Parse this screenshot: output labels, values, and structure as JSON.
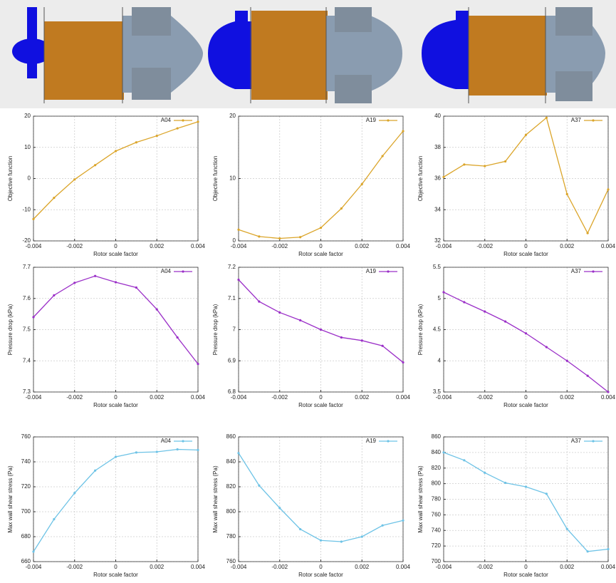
{
  "chart_data": [
    {
      "type": "line",
      "x": [
        -0.004,
        -0.003,
        -0.002,
        -0.001,
        0,
        0.001,
        0.002,
        0.003,
        0.004
      ],
      "series": [
        {
          "name": "A04",
          "color": "#dba52a",
          "values": [
            -13,
            -6.2,
            -0.3,
            4.3,
            8.8,
            11.6,
            13.7,
            16.1,
            18.2
          ]
        }
      ],
      "xlabel": "Rotor scale factor",
      "ylabel": "Objective function",
      "xlim": [
        -0.004,
        0.004
      ],
      "ylim": [
        -20,
        20
      ],
      "xticks": [
        -0.004,
        -0.002,
        0,
        0.002,
        0.004
      ],
      "yticks": [
        -20,
        -10,
        0,
        10,
        20
      ],
      "grid": true
    },
    {
      "type": "line",
      "x": [
        -0.004,
        -0.003,
        -0.002,
        -0.001,
        0,
        0.001,
        0.002,
        0.003,
        0.004
      ],
      "series": [
        {
          "name": "A19",
          "color": "#dba52a",
          "values": [
            1.8,
            0.7,
            0.4,
            0.6,
            2.1,
            5.2,
            9.1,
            13.6,
            17.6
          ]
        }
      ],
      "xlabel": "Rotor scale factor",
      "ylabel": "Objective function",
      "xlim": [
        -0.004,
        0.004
      ],
      "ylim": [
        0,
        20
      ],
      "xticks": [
        -0.004,
        -0.002,
        0,
        0.002,
        0.004
      ],
      "yticks": [
        0,
        10,
        20
      ],
      "grid": true
    },
    {
      "type": "line",
      "x": [
        -0.004,
        -0.003,
        -0.002,
        -0.001,
        0,
        0.001,
        0.002,
        0.003,
        0.004
      ],
      "series": [
        {
          "name": "A37",
          "color": "#dba52a",
          "values": [
            36.1,
            36.9,
            36.8,
            37.1,
            38.8,
            39.9,
            35.0,
            32.5,
            35.3
          ]
        }
      ],
      "xlabel": "Rotor scale factor",
      "ylabel": "Objective function",
      "xlim": [
        -0.004,
        0.004
      ],
      "ylim": [
        32,
        40
      ],
      "xticks": [
        -0.004,
        -0.002,
        0,
        0.002,
        0.004
      ],
      "yticks": [
        32,
        34,
        36,
        38,
        40
      ],
      "grid": true
    },
    {
      "type": "line",
      "x": [
        -0.004,
        -0.003,
        -0.002,
        -0.001,
        0,
        0.001,
        0.002,
        0.003,
        0.004
      ],
      "series": [
        {
          "name": "A04",
          "color": "#9b30c8",
          "values": [
            7.54,
            7.61,
            7.65,
            7.672,
            7.652,
            7.635,
            7.565,
            7.475,
            7.39
          ]
        }
      ],
      "xlabel": "Rotor scale factor",
      "ylabel": "Pressure drop (kPa)",
      "xlim": [
        -0.004,
        0.004
      ],
      "ylim": [
        7.3,
        7.7
      ],
      "xticks": [
        -0.004,
        -0.002,
        0,
        0.002,
        0.004
      ],
      "yticks": [
        7.3,
        7.4,
        7.5,
        7.6,
        7.7
      ],
      "grid": true
    },
    {
      "type": "line",
      "x": [
        -0.004,
        -0.003,
        -0.002,
        -0.001,
        0,
        0.001,
        0.002,
        0.003,
        0.004
      ],
      "series": [
        {
          "name": "A19",
          "color": "#9b30c8",
          "values": [
            7.16,
            7.09,
            7.055,
            7.03,
            7.0,
            6.975,
            6.965,
            6.948,
            6.895
          ]
        }
      ],
      "xlabel": "Rotor scale factor",
      "ylabel": "Pressure drop (kPa)",
      "xlim": [
        -0.004,
        0.004
      ],
      "ylim": [
        6.8,
        7.2
      ],
      "xticks": [
        -0.004,
        -0.002,
        0,
        0.002,
        0.004
      ],
      "yticks": [
        6.8,
        6.9,
        7,
        7.1,
        7.2
      ],
      "grid": true
    },
    {
      "type": "line",
      "x": [
        -0.004,
        -0.003,
        -0.002,
        -0.001,
        0,
        0.001,
        0.002,
        0.003,
        0.004
      ],
      "series": [
        {
          "name": "A37",
          "color": "#9b30c8",
          "values": [
            5.1,
            4.94,
            4.79,
            4.63,
            4.44,
            4.22,
            4.0,
            3.76,
            3.5
          ]
        }
      ],
      "xlabel": "Rotor scale factor",
      "ylabel": "Pressure drop (kPa)",
      "xlim": [
        -0.004,
        0.004
      ],
      "ylim": [
        3.5,
        5.5
      ],
      "xticks": [
        -0.004,
        -0.002,
        0,
        0.002,
        0.004
      ],
      "yticks": [
        3.5,
        4,
        4.5,
        5,
        5.5
      ],
      "grid": true
    },
    {
      "type": "line",
      "x": [
        -0.004,
        -0.003,
        -0.002,
        -0.001,
        0,
        0.001,
        0.002,
        0.003,
        0.004
      ],
      "series": [
        {
          "name": "A04",
          "color": "#6ec3e6",
          "values": [
            668,
            694,
            715,
            733,
            744,
            747.5,
            748,
            750,
            749.5
          ]
        }
      ],
      "xlabel": "Rotor scale factor",
      "ylabel": "Max wall shear stress (Pa)",
      "xlim": [
        -0.004,
        0.004
      ],
      "ylim": [
        660,
        760
      ],
      "xticks": [
        -0.004,
        -0.002,
        0,
        0.002,
        0.004
      ],
      "yticks": [
        660,
        680,
        700,
        720,
        740,
        760
      ],
      "grid": true
    },
    {
      "type": "line",
      "x": [
        -0.004,
        -0.003,
        -0.002,
        -0.001,
        0,
        0.001,
        0.002,
        0.003,
        0.004
      ],
      "series": [
        {
          "name": "A19",
          "color": "#6ec3e6",
          "values": [
            847,
            821,
            803,
            786,
            777,
            776,
            780,
            789,
            793
          ]
        }
      ],
      "xlabel": "Rotor scale factor",
      "ylabel": "Max wall shear stress (Pa)",
      "xlim": [
        -0.004,
        0.004
      ],
      "ylim": [
        760,
        860
      ],
      "xticks": [
        -0.004,
        -0.002,
        0,
        0.002,
        0.004
      ],
      "yticks": [
        760,
        780,
        800,
        820,
        840,
        860
      ],
      "grid": true
    },
    {
      "type": "line",
      "x": [
        -0.004,
        -0.003,
        -0.002,
        -0.001,
        0,
        0.001,
        0.002,
        0.003,
        0.004
      ],
      "series": [
        {
          "name": "A37",
          "color": "#6ec3e6",
          "values": [
            840,
            830,
            814,
            801,
            796,
            787,
            742,
            713,
            716
          ]
        }
      ],
      "xlabel": "Rotor scale factor",
      "ylabel": "Max wall shear stress (Pa)",
      "xlim": [
        -0.004,
        0.004
      ],
      "ylim": [
        700,
        860
      ],
      "xticks": [
        -0.004,
        -0.002,
        0,
        0.002,
        0.004
      ],
      "yticks": [
        700,
        720,
        740,
        760,
        780,
        800,
        820,
        840,
        860
      ],
      "grid": true
    }
  ]
}
